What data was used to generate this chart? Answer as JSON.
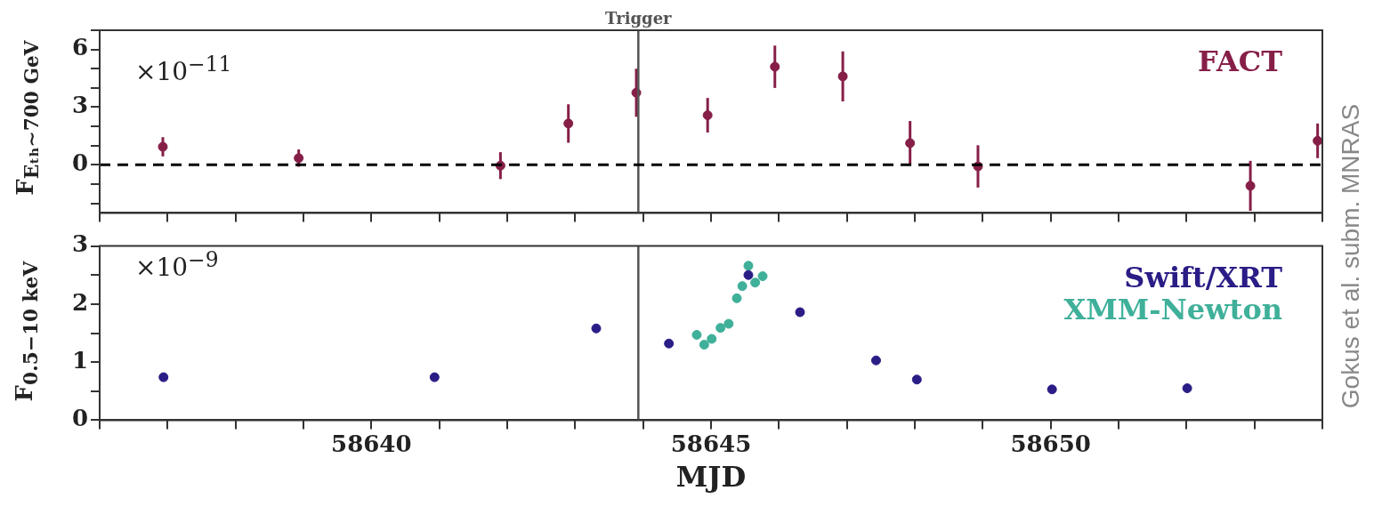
{
  "chart_data": [
    {
      "type": "scatter",
      "ylabel": "F$_{Eₜₕ∼700 GeV}$",
      "xlim": [
        58636,
        58654
      ],
      "xticks": [
        {
          "value": 58636,
          "label": null
        },
        {
          "value": 58637,
          "label": null
        },
        {
          "value": 58638,
          "label": null
        },
        {
          "value": 58639,
          "label": null
        },
        {
          "value": 58640,
          "label": null
        },
        {
          "value": 58641,
          "label": null
        },
        {
          "value": 58642,
          "label": null
        },
        {
          "value": 58643,
          "label": null
        },
        {
          "value": 58644,
          "label": null
        },
        {
          "value": 58645,
          "label": null
        },
        {
          "value": 58646,
          "label": null
        },
        {
          "value": 58647,
          "label": null
        },
        {
          "value": 58648,
          "label": null
        },
        {
          "value": 58649,
          "label": null
        },
        {
          "value": 58650,
          "label": null
        },
        {
          "value": 58651,
          "label": null
        },
        {
          "value": 58652,
          "label": null
        },
        {
          "value": 58653,
          "label": null
        },
        {
          "value": 58654,
          "label": null
        }
      ],
      "ylim": [
        -2.5,
        7
      ],
      "yticks": [
        {
          "value": -2,
          "label": null
        },
        {
          "value": -1,
          "label": null
        },
        0,
        {
          "value": 1,
          "label": null
        },
        {
          "value": 2,
          "label": null
        },
        3,
        {
          "value": 4,
          "label": null
        },
        {
          "value": 5,
          "label": null
        },
        6,
        {
          "value": 7,
          "label": null
        }
      ],
      "tick_labels": "y",
      "grid": false,
      "legend": "top right",
      "marker": "circle",
      "ref_lines": [
        {
          "axis": "x",
          "value": 58643.93,
          "label": "Trigger",
          "color": "#555555",
          "line_style": "solid"
        },
        {
          "axis": "y",
          "value": 0,
          "label": null,
          "color": "#000000",
          "line_style": "dashed"
        }
      ],
      "annotations": [
        "×10$^{−11}$",
        "Gokus et al. subm. MNRAS"
      ],
      "series": [
        {
          "name": "FACT",
          "color": "#861f48",
          "x": [
            58636.93,
            58638.93,
            58641.9,
            58642.9,
            58643.9,
            58644.95,
            58645.94,
            58646.94,
            58647.93,
            58648.93,
            58652.94,
            58653.93
          ],
          "values": [
            0.94,
            0.35,
            -0.04,
            2.15,
            3.75,
            2.58,
            5.1,
            4.6,
            1.13,
            -0.08,
            -1.09,
            1.25
          ],
          "errors": [
            0.5,
            0.45,
            0.7,
            1.0,
            1.25,
            0.9,
            1.1,
            1.3,
            1.15,
            1.1,
            1.3,
            0.9
          ]
        }
      ]
    },
    {
      "type": "scatter",
      "xlabel": "MJD",
      "ylabel": "F$_{0.5−10 keV}$",
      "xlim": [
        58636,
        58654
      ],
      "xticks": [
        {
          "value": 58636,
          "label": null
        },
        {
          "value": 58637,
          "label": null
        },
        {
          "value": 58638,
          "label": null
        },
        {
          "value": 58639,
          "label": null
        },
        58640,
        {
          "value": 58641,
          "label": null
        },
        {
          "value": 58642,
          "label": null
        },
        {
          "value": 58643,
          "label": null
        },
        {
          "value": 58644,
          "label": null
        },
        58645,
        {
          "value": 58646,
          "label": null
        },
        {
          "value": 58647,
          "label": null
        },
        {
          "value": 58648,
          "label": null
        },
        {
          "value": 58649,
          "label": null
        },
        58650,
        {
          "value": 58651,
          "label": null
        },
        {
          "value": 58652,
          "label": null
        },
        {
          "value": 58653,
          "label": null
        },
        {
          "value": 58654,
          "label": null
        }
      ],
      "ylim": [
        0,
        3
      ],
      "yticks": [
        0,
        {
          "value": 0.5,
          "label": null
        },
        1,
        {
          "value": 1.5,
          "label": null
        },
        2,
        {
          "value": 2.5,
          "label": null
        },
        3
      ],
      "grid": false,
      "legend": "top right",
      "marker": "circle",
      "ref_lines": [
        {
          "axis": "x",
          "value": 58643.93,
          "label": null,
          "color": "#555555",
          "line_style": "solid"
        }
      ],
      "annotations": [
        "×10$^{−9}$"
      ],
      "series": [
        {
          "name": "Swift/XRT",
          "color": "#2a1d86",
          "x": [
            58636.94,
            58640.93,
            58643.31,
            58644.38,
            58645.55,
            58646.31,
            58647.43,
            58648.03,
            58650.02,
            58652.01
          ],
          "values": [
            0.74,
            0.74,
            1.58,
            1.32,
            2.5,
            1.86,
            1.03,
            0.7,
            0.53,
            0.55
          ]
        },
        {
          "name": "XMM-Newton",
          "color": "#3fb09a",
          "x": [
            58644.79,
            58644.9,
            58645.01,
            58645.14,
            58645.26,
            58645.38,
            58645.46,
            58645.55,
            58645.65,
            58645.76
          ],
          "values": [
            1.47,
            1.3,
            1.4,
            1.59,
            1.66,
            2.1,
            2.31,
            2.66,
            2.37,
            2.48
          ]
        }
      ]
    }
  ]
}
